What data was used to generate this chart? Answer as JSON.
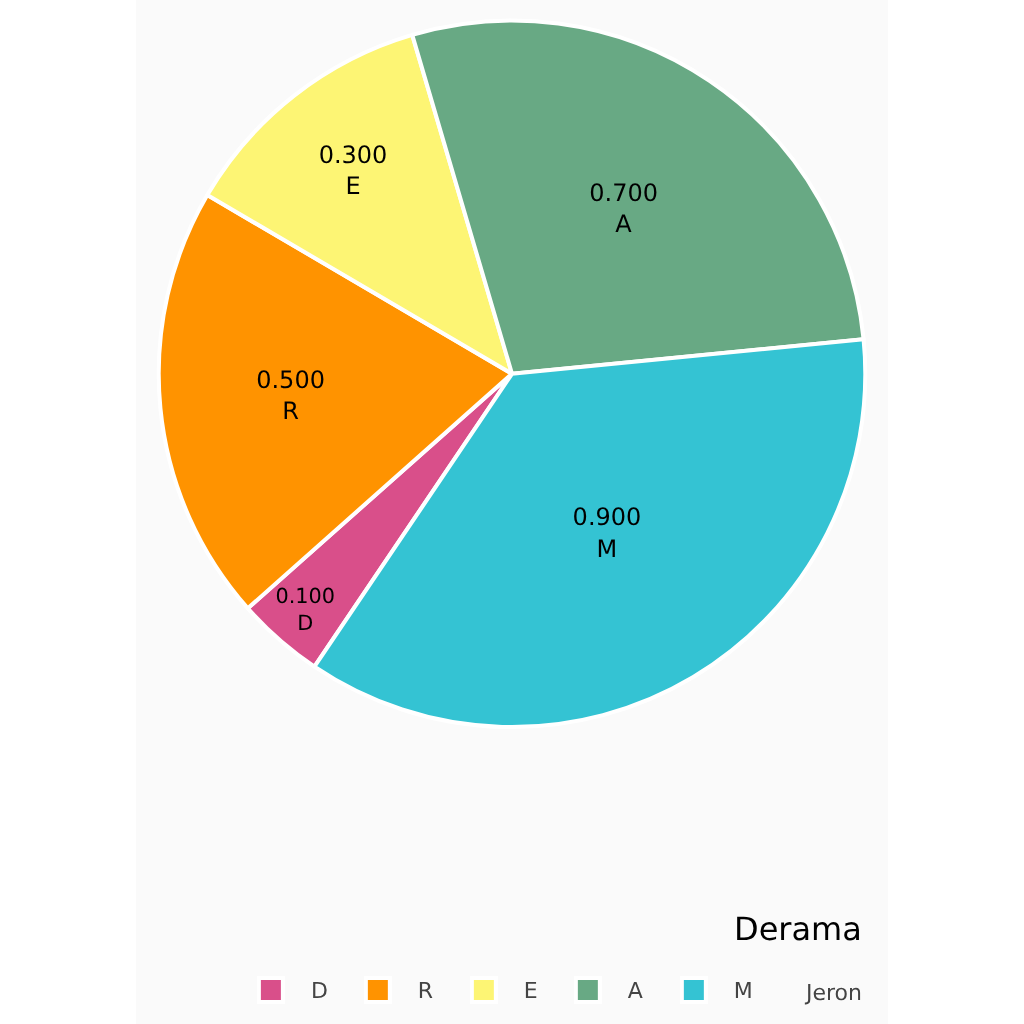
{
  "chart_data": {
    "type": "pie",
    "title": "Derama",
    "legend_title": "Jeron",
    "categories": [
      "D",
      "R",
      "E",
      "A",
      "M"
    ],
    "values": [
      0.1,
      0.5,
      0.3,
      0.7,
      0.9
    ],
    "value_labels": [
      "0.100",
      "0.500",
      "0.300",
      "0.700",
      "0.900"
    ],
    "colors": [
      "#d94f8a",
      "#ff9300",
      "#fdf574",
      "#68a984",
      "#34c3d3"
    ],
    "legend": "bottom right"
  }
}
